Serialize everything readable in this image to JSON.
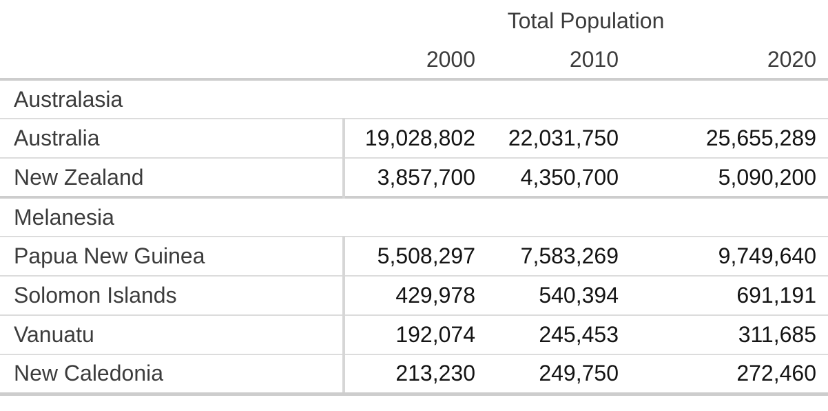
{
  "chart_data": {
    "type": "table",
    "title": "Total Population",
    "columns": [
      "2000",
      "2010",
      "2020"
    ],
    "groups": [
      {
        "name": "Australasia",
        "rows": [
          {
            "label": "Australia",
            "values": [
              "19,028,802",
              "22,031,750",
              "25,655,289"
            ]
          },
          {
            "label": "New Zealand",
            "values": [
              "3,857,700",
              "4,350,700",
              "5,090,200"
            ]
          }
        ]
      },
      {
        "name": "Melanesia",
        "rows": [
          {
            "label": "Papua New Guinea",
            "values": [
              "5,508,297",
              "7,583,269",
              "9,749,640"
            ]
          },
          {
            "label": "Solomon Islands",
            "values": [
              "429,978",
              "540,394",
              "691,191"
            ]
          },
          {
            "label": "Vanuatu",
            "values": [
              "192,074",
              "245,453",
              "311,685"
            ]
          },
          {
            "label": "New Caledonia",
            "values": [
              "213,230",
              "249,750",
              "272,460"
            ]
          }
        ]
      }
    ],
    "layout": {
      "legend": "none",
      "grid": "horizontal-rules",
      "value_alignment": "right"
    },
    "colors": {
      "background": "#ffffff",
      "text_label": "#3c3c3c",
      "text_value": "#141414",
      "rule_heavy": "#cdcdcd",
      "rule_light": "#dcdcdc",
      "column_divider": "#d6d6d6"
    }
  }
}
